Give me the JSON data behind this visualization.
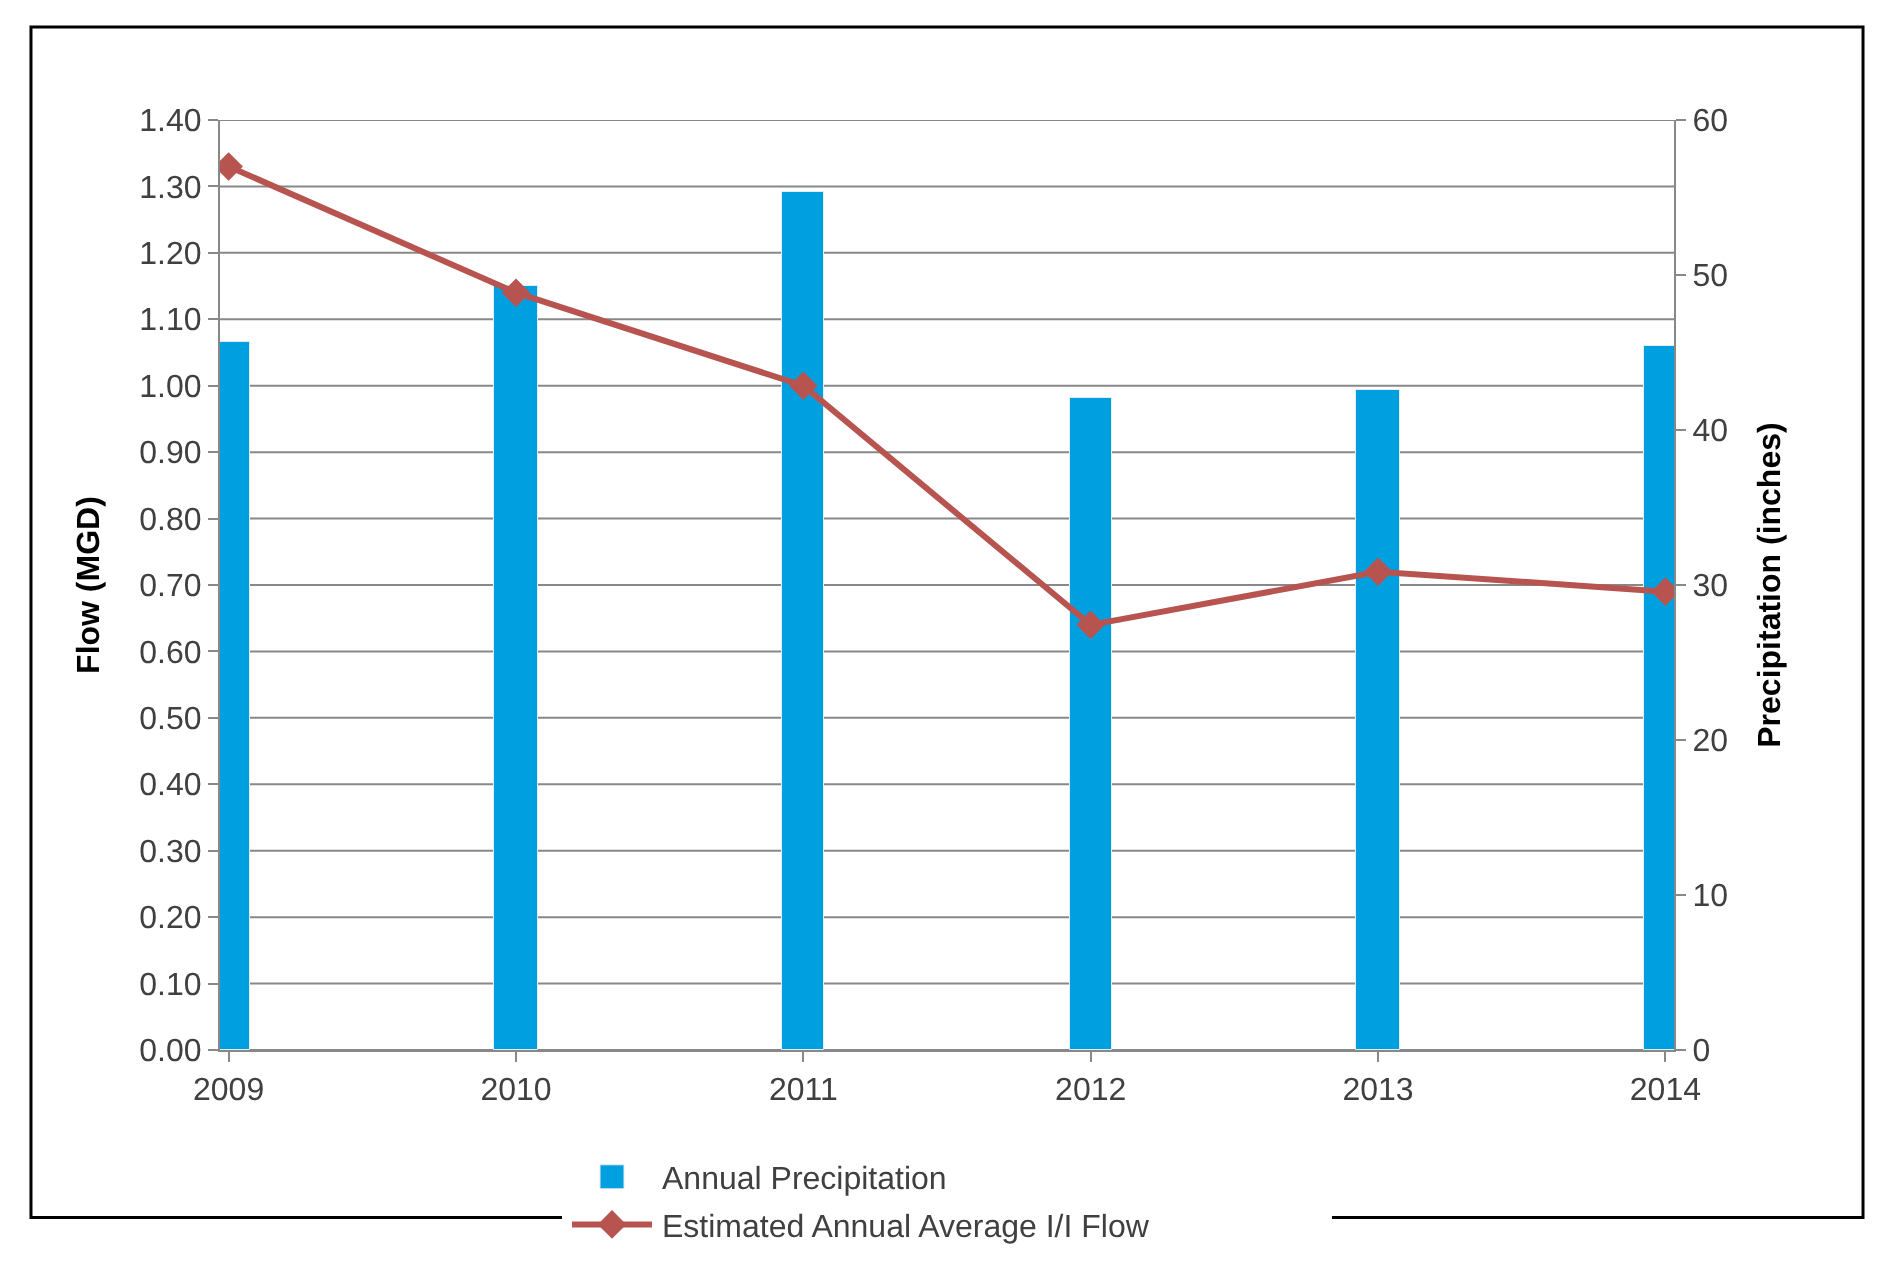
{
  "chart_data": {
    "type": "bar",
    "categories": [
      "2009",
      "2010",
      "2011",
      "2012",
      "2013",
      "2014"
    ],
    "series": [
      {
        "name": "Annual Precipitation",
        "axis": "y2",
        "color": "#00a0e0",
        "values": [
          45.7,
          49.3,
          55.4,
          42.1,
          42.6,
          45.4
        ]
      },
      {
        "name": "Estimated Annual Average I/I Flow",
        "type": "line",
        "color": "#b85450",
        "marker": "diamond",
        "values": [
          1.33,
          1.14,
          1.0,
          0.64,
          0.72,
          0.69
        ]
      }
    ],
    "ylabel": "Flow (MGD)",
    "y2label": "Precipitation (inches)",
    "ylim": [
      0,
      1.4
    ],
    "yticks": [
      {
        "value": 0,
        "label": "0.00"
      },
      {
        "value": 0.1,
        "label": "0.10"
      },
      {
        "value": 0.2,
        "label": "0.20"
      },
      {
        "value": 0.3,
        "label": "0.30"
      },
      {
        "value": 0.4,
        "label": "0.40"
      },
      {
        "value": 0.5,
        "label": "0.50"
      },
      {
        "value": 0.6,
        "label": "0.60"
      },
      {
        "value": 0.7,
        "label": "0.70"
      },
      {
        "value": 0.8,
        "label": "0.80"
      },
      {
        "value": 0.9,
        "label": "0.90"
      },
      {
        "value": 1.0,
        "label": "1.00"
      },
      {
        "value": 1.1,
        "label": "1.10"
      },
      {
        "value": 1.2,
        "label": "1.20"
      },
      {
        "value": 1.3,
        "label": "1.30"
      },
      {
        "value": 1.4,
        "label": "1.40"
      }
    ],
    "y2lim": [
      0,
      60
    ],
    "y2ticks": [
      0,
      10,
      20,
      30,
      40,
      50,
      60
    ],
    "grid": "y",
    "legend": "bottom"
  }
}
